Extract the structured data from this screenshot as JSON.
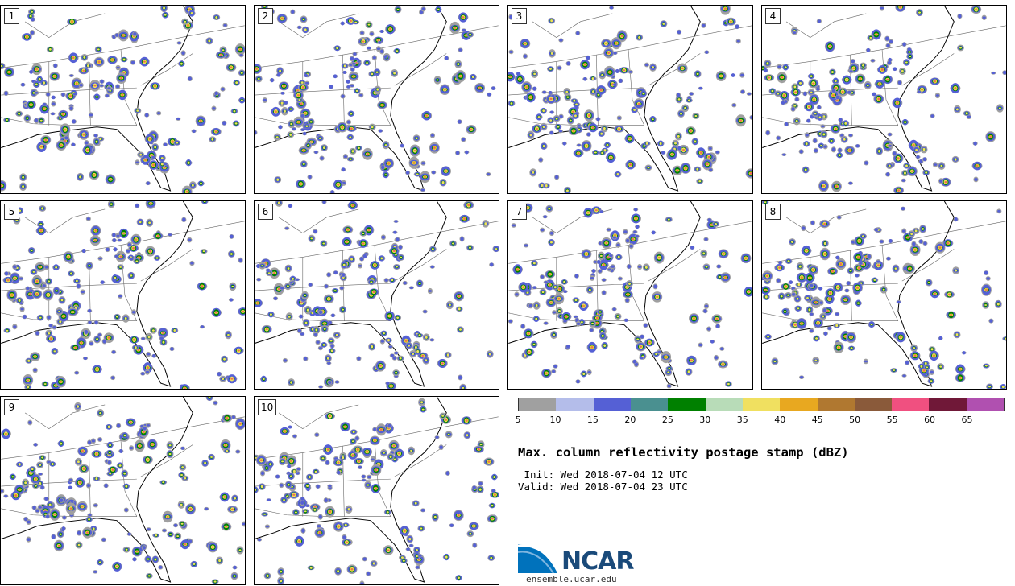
{
  "panels": [
    {
      "label": "1"
    },
    {
      "label": "2"
    },
    {
      "label": "3"
    },
    {
      "label": "4"
    },
    {
      "label": "5"
    },
    {
      "label": "6"
    },
    {
      "label": "7"
    },
    {
      "label": "8"
    },
    {
      "label": "9"
    },
    {
      "label": "10"
    }
  ],
  "colorbar": {
    "colors": [
      "#a0a0a0",
      "#b4bdea",
      "#5560d5",
      "#4a9090",
      "#008000",
      "#b8dcb8",
      "#f0e060",
      "#e8a820",
      "#b07830",
      "#8a5a3a",
      "#f05080",
      "#701838",
      "#b050b0"
    ],
    "ticks": [
      "5",
      "10",
      "15",
      "20",
      "25",
      "30",
      "35",
      "40",
      "45",
      "50",
      "55",
      "60",
      "65"
    ]
  },
  "title": "Max. column reflectivity postage stamp (dBZ)",
  "init": " Init: Wed 2018-07-04 12 UTC",
  "valid": "Valid: Wed 2018-07-04 23 UTC",
  "logo": {
    "name": "NCAR",
    "site": "ensemble.ucar.edu",
    "brand_color": "#0072bc"
  }
}
